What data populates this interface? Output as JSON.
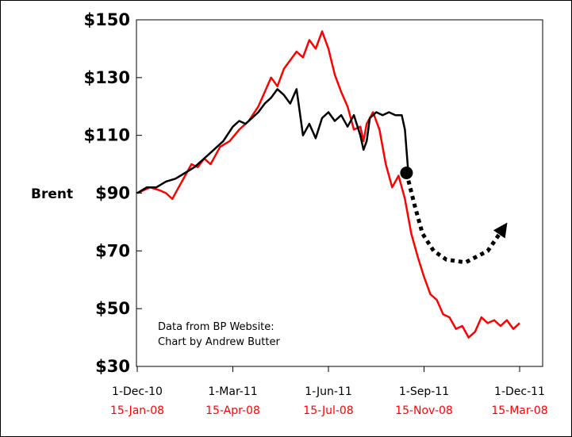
{
  "chart_data": {
    "type": "line",
    "title": "",
    "ylabel": "Brent",
    "xlabel": "",
    "ylim": [
      30,
      150
    ],
    "yticks": [
      30,
      50,
      70,
      90,
      110,
      130,
      150
    ],
    "ytick_labels": [
      "$30",
      "$50",
      "$70",
      "$90",
      "$110",
      "$130",
      "$150"
    ],
    "xlim": [
      0,
      12
    ],
    "xticks": [
      {
        "pos": 0,
        "top": "1-Dec-10",
        "bottom": "15-Jan-08"
      },
      {
        "pos": 3,
        "top": "1-Mar-11",
        "bottom": "15-Apr-08"
      },
      {
        "pos": 6,
        "top": "1-Jun-11",
        "bottom": "15-Jul-08"
      },
      {
        "pos": 9,
        "top": "1-Sep-11",
        "bottom": "15-Nov-08"
      },
      {
        "pos": 12,
        "top": "1-Dec-11",
        "bottom": "15-Mar-08"
      }
    ],
    "annotation": [
      "Data from BP Website:",
      "Chart by Andrew Butter"
    ],
    "series": [
      {
        "name": "2010-11",
        "color": "#000000",
        "x": [
          0,
          0.3,
          0.6,
          0.9,
          1.2,
          1.5,
          1.8,
          2.1,
          2.4,
          2.7,
          3.0,
          3.2,
          3.4,
          3.6,
          3.8,
          4.0,
          4.2,
          4.4,
          4.6,
          4.8,
          5.0,
          5.1,
          5.2,
          5.4,
          5.6,
          5.8,
          6.0,
          6.2,
          6.4,
          6.6,
          6.8,
          7.0,
          7.1,
          7.2,
          7.3,
          7.5,
          7.7,
          7.9,
          8.1,
          8.3,
          8.4,
          8.5
        ],
        "values": [
          90,
          92,
          92,
          94,
          95,
          97,
          99,
          102,
          105,
          108,
          113,
          115,
          114,
          116,
          118,
          121,
          123,
          126,
          124,
          121,
          126,
          118,
          110,
          114,
          109,
          116,
          118,
          115,
          117,
          113,
          117,
          110,
          105,
          108,
          116,
          118,
          117,
          118,
          117,
          117,
          112,
          98
        ]
      },
      {
        "name": "2008",
        "color": "#ff0000",
        "x": [
          0,
          0.4,
          0.7,
          0.9,
          1.1,
          1.3,
          1.5,
          1.7,
          1.9,
          2.1,
          2.3,
          2.6,
          2.9,
          3.2,
          3.5,
          3.8,
          4.0,
          4.2,
          4.4,
          4.6,
          4.8,
          5.0,
          5.2,
          5.4,
          5.6,
          5.8,
          6.0,
          6.2,
          6.4,
          6.6,
          6.8,
          7.0,
          7.1,
          7.2,
          7.4,
          7.6,
          7.8,
          8.0,
          8.2,
          8.4,
          8.6,
          8.8,
          9.0,
          9.2,
          9.4,
          9.6,
          9.8,
          10.0,
          10.2,
          10.4,
          10.6,
          10.8,
          11.0,
          11.2,
          11.4,
          11.6,
          11.8,
          12.0
        ],
        "values": [
          90,
          92,
          91,
          90,
          88,
          92,
          96,
          100,
          99,
          102,
          100,
          106,
          108,
          112,
          115,
          120,
          125,
          130,
          127,
          133,
          136,
          139,
          137,
          143,
          140,
          146,
          140,
          131,
          125,
          120,
          112,
          113,
          108,
          114,
          118,
          112,
          100,
          92,
          96,
          88,
          76,
          68,
          61,
          55,
          53,
          48,
          47,
          43,
          44,
          40,
          42,
          47,
          45,
          46,
          44,
          46,
          43,
          45
        ]
      }
    ],
    "marker": {
      "x": 8.45,
      "y": 97,
      "color": "#000000"
    },
    "projection": {
      "style": "dotted",
      "color": "#000000",
      "x": [
        8.45,
        8.7,
        8.95,
        9.3,
        9.7,
        10.3,
        11.0,
        11.5
      ],
      "values": [
        97,
        86,
        76,
        70,
        67,
        66,
        70,
        78
      ]
    }
  }
}
